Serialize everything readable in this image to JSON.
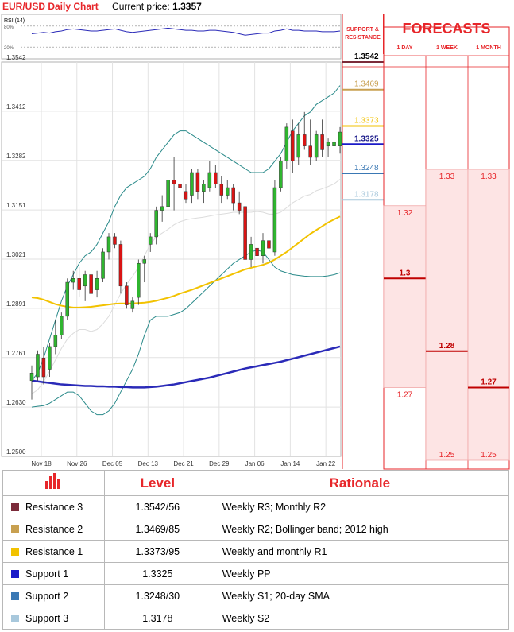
{
  "header": {
    "title": "EUR/USD Daily Chart",
    "current_price_label": "Current price:",
    "current_price": "1.3357"
  },
  "rsi": {
    "label": "RSI (14)",
    "ticks": [
      "80%",
      "20%"
    ]
  },
  "forecast_panel": {
    "sr_heading": "SUPPORT & RESISTANCE",
    "title": "FORECASTS",
    "columns": [
      "1 DAY",
      "1 WEEK",
      "1 MONTH"
    ],
    "ranges": [
      {
        "col": "1 DAY",
        "high": 1.32,
        "center": 1.3,
        "low": 1.27,
        "high_label": "1.32",
        "center_label": "1.3",
        "low_label": "1.27"
      },
      {
        "col": "1 WEEK",
        "high": 1.33,
        "center": 1.28,
        "low": 1.25,
        "high_label": "1.33",
        "center_label": "1.28",
        "low_label": "1.25"
      },
      {
        "col": "1 MONTH",
        "high": 1.33,
        "center": 1.27,
        "low": 1.25,
        "high_label": "1.33",
        "center_label": "1.27",
        "low_label": "1.25"
      }
    ]
  },
  "colors": {
    "accent_red": "#e7262a",
    "candle_up": "#2fb52f",
    "candle_down": "#d91414",
    "sma_slow": "#2a2ab8",
    "sma_fast": "#f2c200",
    "bollinger": "#2a8a8a",
    "r3": "#7b2b3a",
    "r2": "#c8a050",
    "r1": "#f2c200",
    "s1": "#1a1ac8",
    "s2": "#3a78b4",
    "s3": "#a8c8dc",
    "forecast_fill": "#fde4e4",
    "forecast_border": "#f0a8a8"
  },
  "chart_data": {
    "type": "candlestick",
    "title": "EUR/USD Daily Chart",
    "ylim": [
      1.25,
      1.3542
    ],
    "y_ticks": [
      "1.3542",
      "1.3412",
      "1.3282",
      "1.3151",
      "1.3021",
      "1.2891",
      "1.2761",
      "1.2630",
      "1.2500"
    ],
    "x_tick_labels": [
      "Nov 18",
      "Nov 26",
      "Dec 05",
      "Dec 13",
      "Dec 21",
      "Dec 29",
      "Jan 06",
      "Jan 14",
      "Jan 22"
    ],
    "candles": [
      {
        "o": 1.27,
        "h": 1.274,
        "l": 1.265,
        "c": 1.272
      },
      {
        "o": 1.271,
        "h": 1.278,
        "l": 1.27,
        "c": 1.277
      },
      {
        "o": 1.276,
        "h": 1.279,
        "l": 1.269,
        "c": 1.271
      },
      {
        "o": 1.273,
        "h": 1.28,
        "l": 1.271,
        "c": 1.279
      },
      {
        "o": 1.279,
        "h": 1.286,
        "l": 1.277,
        "c": 1.282
      },
      {
        "o": 1.282,
        "h": 1.288,
        "l": 1.281,
        "c": 1.287
      },
      {
        "o": 1.287,
        "h": 1.297,
        "l": 1.286,
        "c": 1.296
      },
      {
        "o": 1.296,
        "h": 1.299,
        "l": 1.294,
        "c": 1.297
      },
      {
        "o": 1.297,
        "h": 1.3,
        "l": 1.292,
        "c": 1.294
      },
      {
        "o": 1.295,
        "h": 1.299,
        "l": 1.291,
        "c": 1.298
      },
      {
        "o": 1.298,
        "h": 1.3,
        "l": 1.291,
        "c": 1.293
      },
      {
        "o": 1.294,
        "h": 1.299,
        "l": 1.292,
        "c": 1.297
      },
      {
        "o": 1.297,
        "h": 1.305,
        "l": 1.296,
        "c": 1.304
      },
      {
        "o": 1.304,
        "h": 1.309,
        "l": 1.302,
        "c": 1.308
      },
      {
        "o": 1.308,
        "h": 1.309,
        "l": 1.305,
        "c": 1.306
      },
      {
        "o": 1.306,
        "h": 1.307,
        "l": 1.293,
        "c": 1.295
      },
      {
        "o": 1.295,
        "h": 1.296,
        "l": 1.289,
        "c": 1.29
      },
      {
        "o": 1.289,
        "h": 1.292,
        "l": 1.288,
        "c": 1.291
      },
      {
        "o": 1.292,
        "h": 1.302,
        "l": 1.29,
        "c": 1.301
      },
      {
        "o": 1.301,
        "h": 1.303,
        "l": 1.296,
        "c": 1.302
      },
      {
        "o": 1.306,
        "h": 1.309,
        "l": 1.304,
        "c": 1.308
      },
      {
        "o": 1.308,
        "h": 1.316,
        "l": 1.306,
        "c": 1.315
      },
      {
        "o": 1.315,
        "h": 1.319,
        "l": 1.312,
        "c": 1.316
      },
      {
        "o": 1.316,
        "h": 1.324,
        "l": 1.314,
        "c": 1.323
      },
      {
        "o": 1.323,
        "h": 1.329,
        "l": 1.315,
        "c": 1.322
      },
      {
        "o": 1.322,
        "h": 1.33,
        "l": 1.318,
        "c": 1.321
      },
      {
        "o": 1.32,
        "h": 1.322,
        "l": 1.317,
        "c": 1.318
      },
      {
        "o": 1.319,
        "h": 1.326,
        "l": 1.317,
        "c": 1.325
      },
      {
        "o": 1.325,
        "h": 1.326,
        "l": 1.318,
        "c": 1.32
      },
      {
        "o": 1.32,
        "h": 1.323,
        "l": 1.317,
        "c": 1.322
      },
      {
        "o": 1.321,
        "h": 1.328,
        "l": 1.32,
        "c": 1.325
      },
      {
        "o": 1.325,
        "h": 1.327,
        "l": 1.321,
        "c": 1.322
      },
      {
        "o": 1.322,
        "h": 1.324,
        "l": 1.317,
        "c": 1.319
      },
      {
        "o": 1.319,
        "h": 1.323,
        "l": 1.318,
        "c": 1.321
      },
      {
        "o": 1.321,
        "h": 1.322,
        "l": 1.315,
        "c": 1.317
      },
      {
        "o": 1.317,
        "h": 1.32,
        "l": 1.314,
        "c": 1.315
      },
      {
        "o": 1.316,
        "h": 1.319,
        "l": 1.3,
        "c": 1.302
      },
      {
        "o": 1.302,
        "h": 1.308,
        "l": 1.3,
        "c": 1.306
      },
      {
        "o": 1.305,
        "h": 1.309,
        "l": 1.301,
        "c": 1.303
      },
      {
        "o": 1.303,
        "h": 1.309,
        "l": 1.301,
        "c": 1.307
      },
      {
        "o": 1.307,
        "h": 1.308,
        "l": 1.303,
        "c": 1.305
      },
      {
        "o": 1.304,
        "h": 1.323,
        "l": 1.303,
        "c": 1.321
      },
      {
        "o": 1.321,
        "h": 1.329,
        "l": 1.32,
        "c": 1.328
      },
      {
        "o": 1.328,
        "h": 1.338,
        "l": 1.326,
        "c": 1.337
      },
      {
        "o": 1.336,
        "h": 1.339,
        "l": 1.325,
        "c": 1.328
      },
      {
        "o": 1.329,
        "h": 1.338,
        "l": 1.327,
        "c": 1.335
      },
      {
        "o": 1.335,
        "h": 1.341,
        "l": 1.331,
        "c": 1.332
      },
      {
        "o": 1.332,
        "h": 1.339,
        "l": 1.327,
        "c": 1.329
      },
      {
        "o": 1.329,
        "h": 1.336,
        "l": 1.328,
        "c": 1.335
      },
      {
        "o": 1.335,
        "h": 1.339,
        "l": 1.329,
        "c": 1.331
      },
      {
        "o": 1.332,
        "h": 1.334,
        "l": 1.329,
        "c": 1.333
      },
      {
        "o": 1.332,
        "h": 1.335,
        "l": 1.331,
        "c": 1.333
      },
      {
        "o": 1.332,
        "h": 1.337,
        "l": 1.33,
        "c": 1.3357
      }
    ],
    "sma_slow": [
      1.27,
      1.2698,
      1.2696,
      1.2694,
      1.2692,
      1.269,
      1.2689,
      1.2688,
      1.2687,
      1.2686,
      1.2686,
      1.2685,
      1.2685,
      1.2684,
      1.2684,
      1.2683,
      1.2683,
      1.2682,
      1.2682,
      1.2682,
      1.2683,
      1.2684,
      1.2686,
      1.2688,
      1.269,
      1.2693,
      1.2696,
      1.2699,
      1.2702,
      1.2705,
      1.2708,
      1.2712,
      1.2716,
      1.272,
      1.2724,
      1.2728,
      1.2732,
      1.2735,
      1.2738,
      1.2741,
      1.2744,
      1.2747,
      1.275,
      1.2754,
      1.2758,
      1.2762,
      1.2766,
      1.277,
      1.2774,
      1.2778,
      1.2782,
      1.2786,
      1.279
    ],
    "sma_fast": [
      1.292,
      1.2918,
      1.2914,
      1.2908,
      1.2902,
      1.2898,
      1.2895,
      1.2893,
      1.2893,
      1.2894,
      1.2895,
      1.2897,
      1.2899,
      1.2901,
      1.2903,
      1.2904,
      1.2904,
      1.2904,
      1.2905,
      1.2906,
      1.2908,
      1.2911,
      1.2915,
      1.2919,
      1.2924,
      1.293,
      1.2935,
      1.294,
      1.2946,
      1.2952,
      1.2958,
      1.2964,
      1.297,
      1.2976,
      1.2982,
      1.2988,
      1.2994,
      1.2998,
      1.3002,
      1.3006,
      1.3012,
      1.302,
      1.303,
      1.304,
      1.3052,
      1.3064,
      1.3076,
      1.3088,
      1.3098,
      1.3108,
      1.3118,
      1.3126,
      1.3134
    ],
    "bb_upper": [
      1.27,
      1.272,
      1.276,
      1.281,
      1.286,
      1.291,
      1.295,
      1.298,
      1.301,
      1.303,
      1.304,
      1.306,
      1.309,
      1.312,
      1.316,
      1.319,
      1.321,
      1.322,
      1.323,
      1.324,
      1.326,
      1.329,
      1.331,
      1.333,
      1.335,
      1.336,
      1.336,
      1.335,
      1.334,
      1.333,
      1.332,
      1.331,
      1.33,
      1.329,
      1.328,
      1.327,
      1.326,
      1.325,
      1.325,
      1.325,
      1.326,
      1.328,
      1.33,
      1.333,
      1.336,
      1.338,
      1.34,
      1.341,
      1.343,
      1.344,
      1.345,
      1.346,
      1.348
    ],
    "bb_lower": [
      1.263,
      1.2632,
      1.2634,
      1.264,
      1.265,
      1.266,
      1.267,
      1.267,
      1.266,
      1.264,
      1.262,
      1.261,
      1.261,
      1.262,
      1.264,
      1.267,
      1.27,
      1.273,
      1.277,
      1.282,
      1.286,
      1.287,
      1.287,
      1.287,
      1.2875,
      1.288,
      1.289,
      1.2905,
      1.292,
      1.2935,
      1.295,
      1.2965,
      1.298,
      1.2995,
      1.301,
      1.302,
      1.303,
      1.304,
      1.3045,
      1.304,
      1.302,
      1.3,
      1.299,
      1.2985,
      1.298,
      1.2978,
      1.2976,
      1.2975,
      1.2975,
      1.2975,
      1.2977,
      1.298,
      1.2985
    ],
    "bb_middle": [
      1.2665,
      1.2676,
      1.2697,
      1.2725,
      1.2755,
      1.2785,
      1.281,
      1.2825,
      1.2835,
      1.2835,
      1.283,
      1.2835,
      1.285,
      1.287,
      1.29,
      1.293,
      1.2955,
      1.2975,
      1.3,
      1.303,
      1.306,
      1.308,
      1.309,
      1.31,
      1.3112,
      1.312,
      1.3125,
      1.3128,
      1.313,
      1.3132,
      1.3135,
      1.3138,
      1.314,
      1.3142,
      1.3145,
      1.3145,
      1.3145,
      1.3145,
      1.3147,
      1.3145,
      1.314,
      1.314,
      1.3145,
      1.3157,
      1.317,
      1.3179,
      1.3188,
      1.3192,
      1.3202,
      1.3207,
      1.3213,
      1.322,
      1.3232
    ],
    "rsi": [
      58,
      60,
      62,
      60,
      64,
      66,
      70,
      72,
      70,
      68,
      66,
      66,
      68,
      70,
      72,
      68,
      64,
      62,
      64,
      66,
      68,
      70,
      72,
      74,
      72,
      70,
      68,
      68,
      66,
      66,
      68,
      68,
      66,
      64,
      62,
      58,
      54,
      56,
      58,
      60,
      60,
      66,
      68,
      72,
      68,
      68,
      66,
      66,
      66,
      64,
      64,
      64,
      66
    ],
    "levels": {
      "r3": {
        "label": "1.3542",
        "value": 1.3542
      },
      "r2": {
        "label": "1.3469",
        "value": 1.3469
      },
      "r1": {
        "label": "1.3373",
        "value": 1.3373
      },
      "s1": {
        "label": "1.3325",
        "value": 1.3325
      },
      "s2": {
        "label": "1.3248",
        "value": 1.3248
      },
      "s3": {
        "label": "1.3178",
        "value": 1.3178
      }
    }
  },
  "table": {
    "headers": [
      "",
      "Level",
      "Rationale"
    ],
    "rows": [
      {
        "name": "Resistance 3",
        "level": "1.3542/56",
        "rationale": "Weekly R3; Monthly R2",
        "color": "#7b2b3a"
      },
      {
        "name": "Resistance 2",
        "level": "1.3469/85",
        "rationale": "Weekly R2; Bollinger band; 2012 high",
        "color": "#c8a050"
      },
      {
        "name": "Resistance 1",
        "level": "1.3373/95",
        "rationale": "Weekly and monthly R1",
        "color": "#f2c200"
      },
      {
        "name": "Support 1",
        "level": "1.3325",
        "rationale": "Weekly PP",
        "color": "#1a1ac8"
      },
      {
        "name": "Support 2",
        "level": "1.3248/30",
        "rationale": "Weekly S1; 20-day SMA",
        "color": "#3a78b4"
      },
      {
        "name": "Support 3",
        "level": "1.3178",
        "rationale": "Weekly S2",
        "color": "#a8c8dc"
      }
    ]
  }
}
